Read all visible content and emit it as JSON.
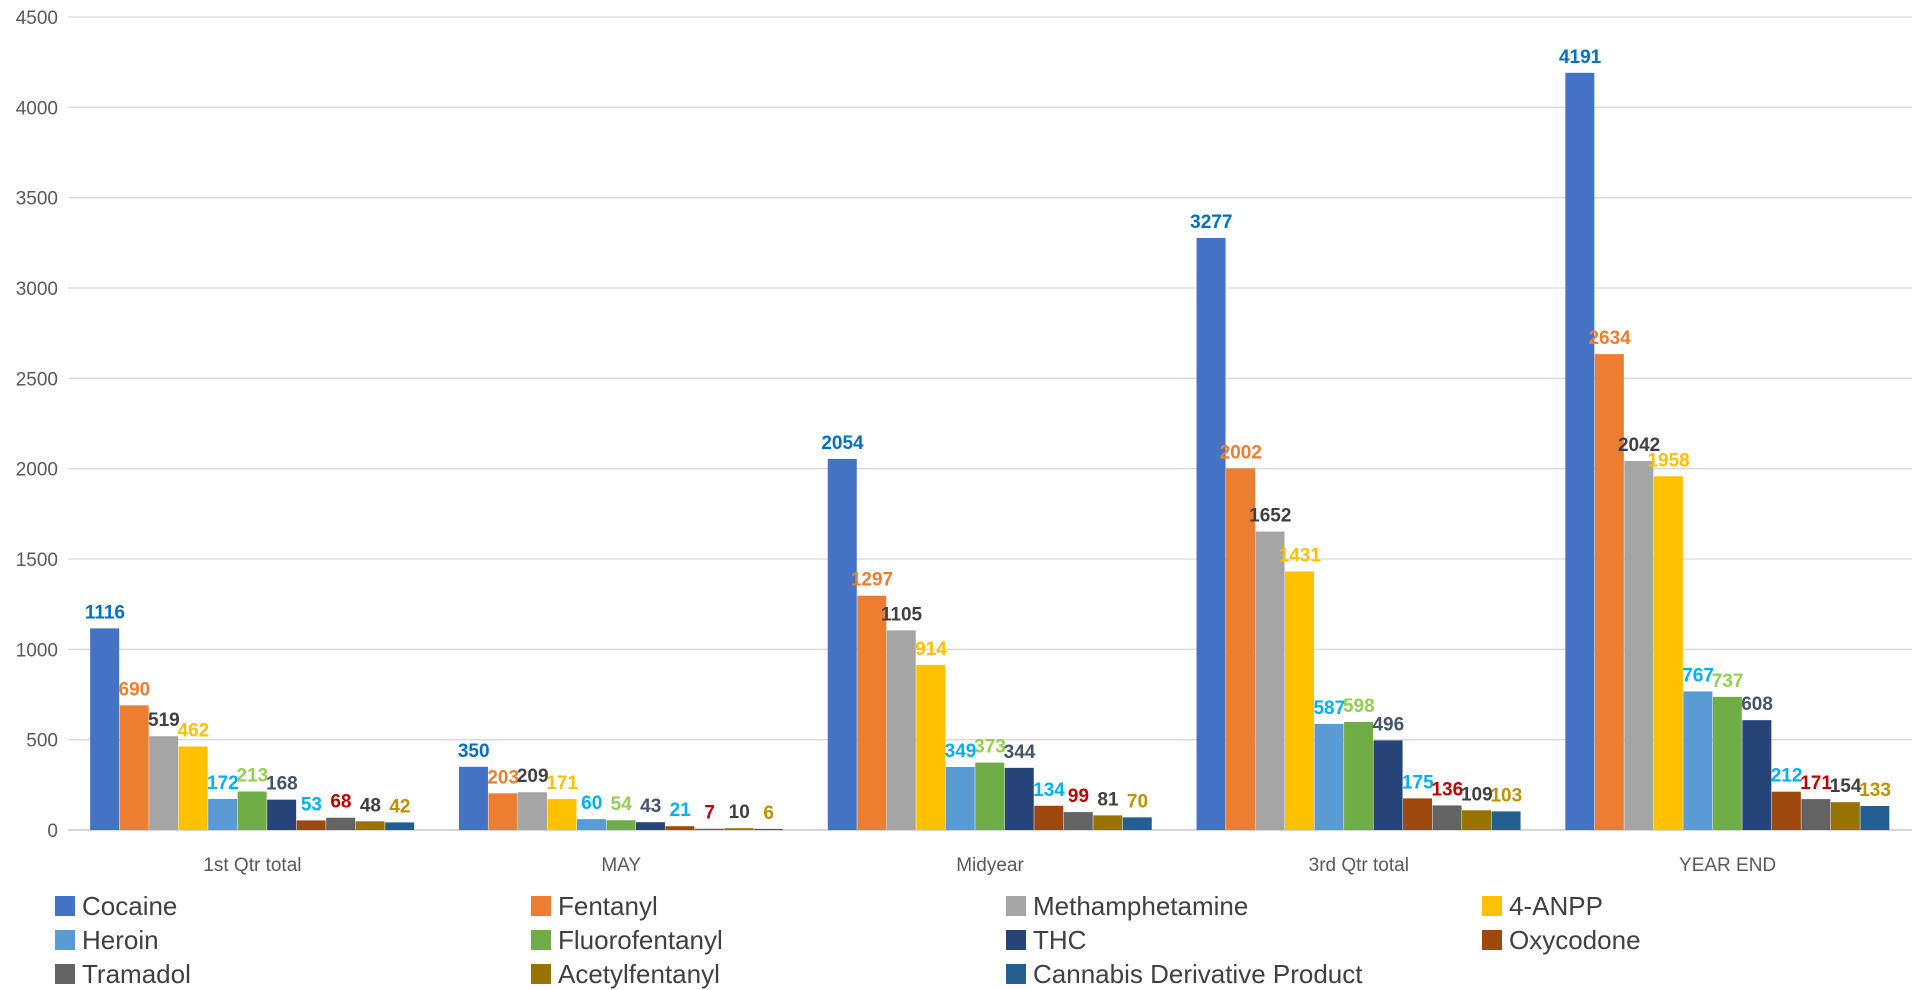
{
  "chart_data": {
    "type": "bar",
    "title": "",
    "xlabel": "",
    "ylabel": "",
    "ylim": [
      0,
      4500
    ],
    "yticks": [
      0,
      500,
      1000,
      1500,
      2000,
      2500,
      3000,
      3500,
      4000,
      4500
    ],
    "grid": true,
    "legend_position": "bottom",
    "categories": [
      "1st Qtr total",
      "MAY",
      "Midyear",
      "3rd Qtr total",
      "YEAR END"
    ],
    "series": [
      {
        "name": "Cocaine",
        "color": "#4472C4",
        "label_color": "#0070C0",
        "values": [
          1116,
          350,
          2054,
          3277,
          4191
        ]
      },
      {
        "name": "Fentanyl",
        "color": "#ED7D31",
        "label_color": "#ED7D31",
        "values": [
          690,
          203,
          1297,
          2002,
          2634
        ]
      },
      {
        "name": "Methamphetamine",
        "color": "#A5A5A5",
        "label_color": "#404040",
        "values": [
          519,
          209,
          1105,
          1652,
          2042
        ]
      },
      {
        "name": "4-ANPP",
        "color": "#FFC000",
        "label_color": "#FFC000",
        "values": [
          462,
          171,
          914,
          1431,
          1958
        ]
      },
      {
        "name": "Heroin",
        "color": "#5B9BD5",
        "label_color": "#00B0F0",
        "values": [
          172,
          60,
          349,
          587,
          767
        ]
      },
      {
        "name": "Fluorofentanyl",
        "color": "#70AD47",
        "label_color": "#92D050",
        "values": [
          213,
          54,
          373,
          598,
          737
        ]
      },
      {
        "name": "THC",
        "color": "#264478",
        "label_color": "#44546A",
        "values": [
          168,
          43,
          344,
          496,
          608
        ]
      },
      {
        "name": "Oxycodone",
        "color": "#9E480E",
        "label_color": "#00B0F0",
        "values": [
          53,
          21,
          134,
          175,
          212
        ]
      },
      {
        "name": "Tramadol",
        "color": "#636363",
        "label_color": "#C00000",
        "values": [
          68,
          7,
          99,
          136,
          171
        ]
      },
      {
        "name": "Acetylfentanyl",
        "color": "#997300",
        "label_color": "#404040",
        "values": [
          48,
          10,
          81,
          109,
          154
        ]
      },
      {
        "name": "Cannabis Derivative Product",
        "color": "#255E91",
        "label_color": "#BF9000",
        "values": [
          42,
          6,
          70,
          103,
          133
        ]
      }
    ]
  }
}
